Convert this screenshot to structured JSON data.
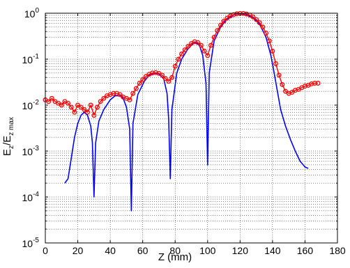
{
  "chart_data": {
    "type": "line",
    "xlabel": "Z (mm)",
    "ylabel": {
      "main": "E",
      "sub1": "z",
      "mid": "/E",
      "sub2": "z max"
    },
    "xlim": [
      0,
      180
    ],
    "ylim": [
      1e-05,
      1
    ],
    "yscale": "log",
    "grid": "both-major-minor-dotted",
    "xticks": [
      "0",
      "20",
      "40",
      "60",
      "80",
      "100",
      "120",
      "140",
      "160",
      "180"
    ],
    "yticks": [
      {
        "value": 1e-05,
        "base": "10",
        "exp": "-5"
      },
      {
        "value": 0.0001,
        "base": "10",
        "exp": "-4"
      },
      {
        "value": 0.001,
        "base": "10",
        "exp": "-3"
      },
      {
        "value": 0.01,
        "base": "10",
        "exp": "-2"
      },
      {
        "value": 0.1,
        "base": "10",
        "exp": "-1"
      },
      {
        "value": 1,
        "base": "10",
        "exp": "0"
      }
    ],
    "series": [
      {
        "style": "line",
        "color": "#0000ff",
        "points": [
          [
            12,
            0.0002
          ],
          [
            14,
            0.00025
          ],
          [
            16,
            0.0007
          ],
          [
            18,
            0.002
          ],
          [
            20,
            0.004
          ],
          [
            22,
            0.006
          ],
          [
            24,
            0.007
          ],
          [
            26,
            0.006
          ],
          [
            28,
            0.0035
          ],
          [
            29,
            0.0015
          ],
          [
            30,
            0.0001
          ],
          [
            31,
            0.0015
          ],
          [
            33,
            0.0045
          ],
          [
            36,
            0.008
          ],
          [
            40,
            0.013
          ],
          [
            43,
            0.016
          ],
          [
            46,
            0.016
          ],
          [
            48,
            0.014
          ],
          [
            50,
            0.009
          ],
          [
            52,
            0.003
          ],
          [
            53,
            5e-05
          ],
          [
            54,
            0.004
          ],
          [
            57,
            0.017
          ],
          [
            61,
            0.033
          ],
          [
            64,
            0.045
          ],
          [
            67,
            0.05
          ],
          [
            70,
            0.048
          ],
          [
            73,
            0.037
          ],
          [
            75,
            0.018
          ],
          [
            76,
            0.005
          ],
          [
            77,
            0.00025
          ],
          [
            78,
            0.008
          ],
          [
            81,
            0.05
          ],
          [
            84,
            0.1
          ],
          [
            88,
            0.17
          ],
          [
            91,
            0.22
          ],
          [
            93,
            0.23
          ],
          [
            95,
            0.2
          ],
          [
            97,
            0.12
          ],
          [
            99,
            0.03
          ],
          [
            100,
            0.0005
          ],
          [
            101,
            0.05
          ],
          [
            104,
            0.25
          ],
          [
            108,
            0.5
          ],
          [
            112,
            0.75
          ],
          [
            116,
            0.92
          ],
          [
            120,
            0.98
          ],
          [
            124,
            0.93
          ],
          [
            128,
            0.8
          ],
          [
            132,
            0.58
          ],
          [
            136,
            0.3
          ],
          [
            139,
            0.12
          ],
          [
            141,
            0.05
          ],
          [
            143,
            0.02
          ],
          [
            145,
            0.008
          ],
          [
            148,
            0.0035
          ],
          [
            151,
            0.0018
          ],
          [
            154,
            0.001
          ],
          [
            157,
            0.0006
          ],
          [
            160,
            0.00045
          ],
          [
            162,
            0.00042
          ]
        ]
      },
      {
        "style": "line-marker",
        "color": "#ff0000",
        "marker": "circle",
        "points": [
          [
            0,
            0.013
          ],
          [
            2,
            0.012
          ],
          [
            4,
            0.014
          ],
          [
            6,
            0.012
          ],
          [
            8,
            0.011
          ],
          [
            10,
            0.01
          ],
          [
            12,
            0.012
          ],
          [
            14,
            0.011
          ],
          [
            16,
            0.009
          ],
          [
            18,
            0.007
          ],
          [
            20,
            0.01
          ],
          [
            22,
            0.009
          ],
          [
            24,
            0.008
          ],
          [
            26,
            0.007
          ],
          [
            28,
            0.01
          ],
          [
            30,
            0.006
          ],
          [
            32,
            0.009
          ],
          [
            34,
            0.012
          ],
          [
            36,
            0.014
          ],
          [
            38,
            0.016
          ],
          [
            40,
            0.017
          ],
          [
            42,
            0.018
          ],
          [
            44,
            0.018
          ],
          [
            46,
            0.017
          ],
          [
            48,
            0.015
          ],
          [
            50,
            0.014
          ],
          [
            52,
            0.013
          ],
          [
            54,
            0.018
          ],
          [
            56,
            0.023
          ],
          [
            58,
            0.03
          ],
          [
            60,
            0.036
          ],
          [
            62,
            0.042
          ],
          [
            64,
            0.047
          ],
          [
            66,
            0.05
          ],
          [
            68,
            0.051
          ],
          [
            70,
            0.049
          ],
          [
            72,
            0.045
          ],
          [
            74,
            0.038
          ],
          [
            76,
            0.033
          ],
          [
            78,
            0.04
          ],
          [
            80,
            0.07
          ],
          [
            82,
            0.1
          ],
          [
            84,
            0.13
          ],
          [
            86,
            0.16
          ],
          [
            88,
            0.19
          ],
          [
            90,
            0.22
          ],
          [
            92,
            0.24
          ],
          [
            94,
            0.23
          ],
          [
            96,
            0.2
          ],
          [
            98,
            0.15
          ],
          [
            100,
            0.12
          ],
          [
            102,
            0.2
          ],
          [
            104,
            0.3
          ],
          [
            106,
            0.42
          ],
          [
            108,
            0.55
          ],
          [
            110,
            0.67
          ],
          [
            112,
            0.78
          ],
          [
            114,
            0.87
          ],
          [
            116,
            0.93
          ],
          [
            118,
            0.97
          ],
          [
            120,
            0.99
          ],
          [
            122,
            0.99
          ],
          [
            124,
            0.96
          ],
          [
            126,
            0.91
          ],
          [
            128,
            0.83
          ],
          [
            130,
            0.73
          ],
          [
            132,
            0.62
          ],
          [
            134,
            0.5
          ],
          [
            136,
            0.37
          ],
          [
            138,
            0.25
          ],
          [
            140,
            0.15
          ],
          [
            142,
            0.08
          ],
          [
            144,
            0.045
          ],
          [
            146,
            0.028
          ],
          [
            148,
            0.02
          ],
          [
            150,
            0.018
          ],
          [
            152,
            0.019
          ],
          [
            154,
            0.021
          ],
          [
            156,
            0.022
          ],
          [
            158,
            0.024
          ],
          [
            160,
            0.026
          ],
          [
            162,
            0.027
          ],
          [
            164,
            0.029
          ],
          [
            166,
            0.03
          ],
          [
            168,
            0.03
          ]
        ]
      }
    ]
  }
}
